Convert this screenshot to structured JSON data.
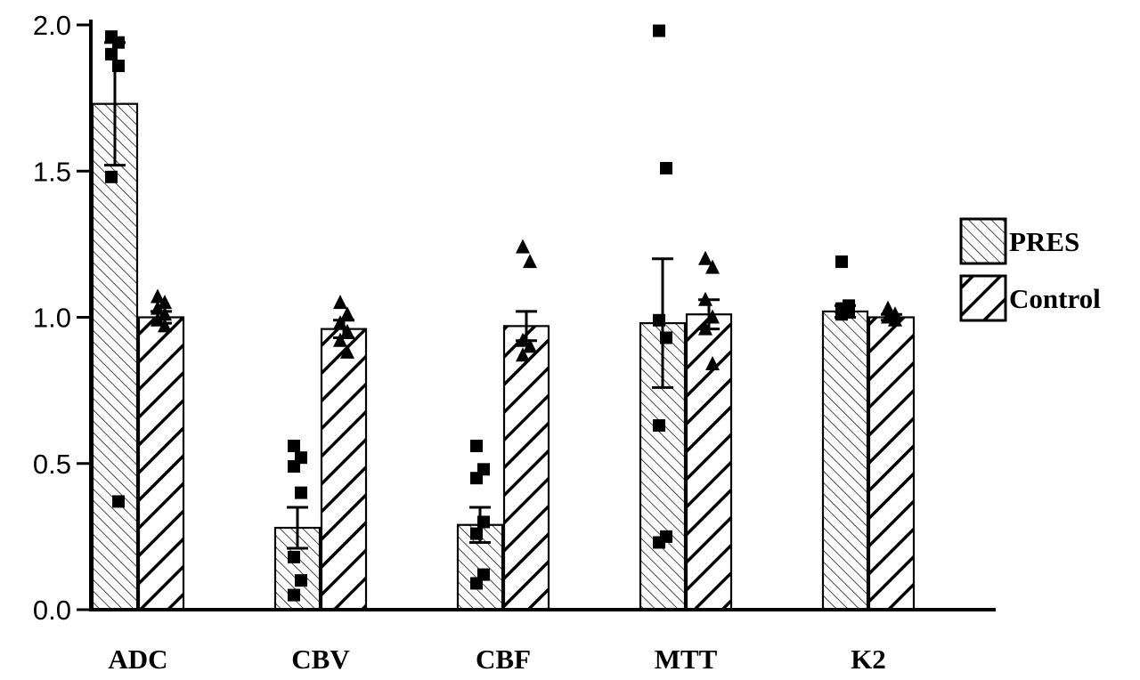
{
  "chart_data": {
    "type": "bar",
    "categories": [
      "ADC",
      "CBV",
      "CBF",
      "MTT",
      "K2"
    ],
    "ylim": [
      0,
      2.0
    ],
    "yticks": [
      "0.0",
      "0.5",
      "1.0",
      "1.5",
      "2.0"
    ],
    "legend_position": "right",
    "grid": false,
    "series": [
      {
        "name": "PRES",
        "pattern": "fine-diagonal-hatch",
        "marker": "square",
        "values": [
          1.73,
          0.28,
          0.29,
          0.98,
          1.02
        ],
        "error": [
          0.21,
          0.07,
          0.06,
          0.22,
          0.02
        ],
        "points": [
          [
            1.96,
            1.94,
            1.9,
            1.86,
            1.48,
            0.37
          ],
          [
            0.56,
            0.52,
            0.49,
            0.4,
            0.18,
            0.1,
            0.05
          ],
          [
            0.56,
            0.48,
            0.45,
            0.3,
            0.26,
            0.12,
            0.09
          ],
          [
            1.98,
            1.51,
            0.99,
            0.93,
            0.63,
            0.25,
            0.23
          ],
          [
            1.19,
            1.04,
            1.03,
            1.02,
            1.01
          ]
        ]
      },
      {
        "name": "Control",
        "pattern": "wide-backslash-hatch",
        "marker": "triangle",
        "values": [
          1.0,
          0.96,
          0.97,
          1.01,
          1.0
        ],
        "error": [
          0.02,
          0.03,
          0.05,
          0.05,
          0.01
        ],
        "points": [
          [
            1.07,
            1.05,
            1.03,
            1.01,
            0.99,
            0.97
          ],
          [
            1.05,
            1.01,
            0.98,
            0.95,
            0.92,
            0.88
          ],
          [
            1.24,
            1.19,
            0.92,
            0.9,
            0.87
          ],
          [
            1.2,
            1.17,
            1.06,
            1.0,
            0.96,
            0.84
          ],
          [
            1.03,
            1.01,
            1.0,
            0.99
          ]
        ]
      }
    ]
  }
}
